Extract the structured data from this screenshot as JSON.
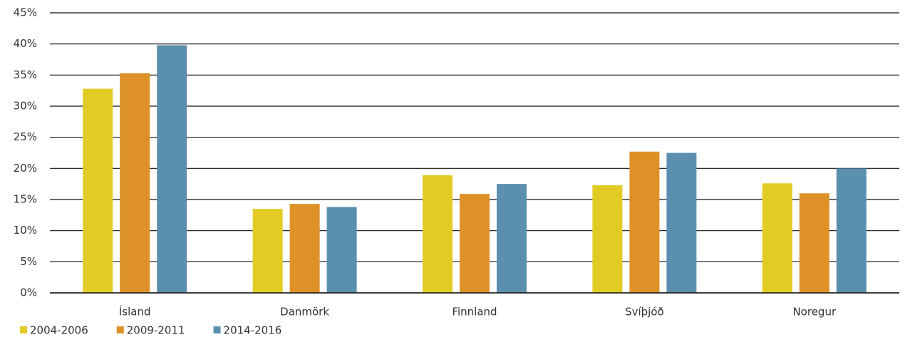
{
  "chart_data": {
    "type": "bar",
    "categories": [
      "Ísland",
      "Danmörk",
      "Finnland",
      "Svíþjóð",
      "Noregur"
    ],
    "series": [
      {
        "name": "2004-2006",
        "color": "#e3cb25",
        "values": [
          32.8,
          13.5,
          18.9,
          17.3,
          17.6
        ]
      },
      {
        "name": "2009-2011",
        "color": "#dd9127",
        "values": [
          35.3,
          14.3,
          15.9,
          22.7,
          16.0
        ]
      },
      {
        "name": "2014-2016",
        "color": "#5b8fae",
        "values": [
          39.8,
          13.8,
          17.5,
          22.5,
          20.0
        ]
      }
    ],
    "ylim": [
      0,
      45
    ],
    "yticks": [
      {
        "value": 0,
        "label": "0%"
      },
      {
        "value": 5,
        "label": "5%"
      },
      {
        "value": 10,
        "label": "10%"
      },
      {
        "value": 15,
        "label": "15%"
      },
      {
        "value": 20,
        "label": "20%"
      },
      {
        "value": 25,
        "label": "25%"
      },
      {
        "value": 30,
        "label": "30%"
      },
      {
        "value": 35,
        "label": "35%"
      },
      {
        "value": 40,
        "label": "40%"
      },
      {
        "value": 45,
        "label": "45%"
      }
    ],
    "grid": true,
    "legend": "bottom-left"
  }
}
